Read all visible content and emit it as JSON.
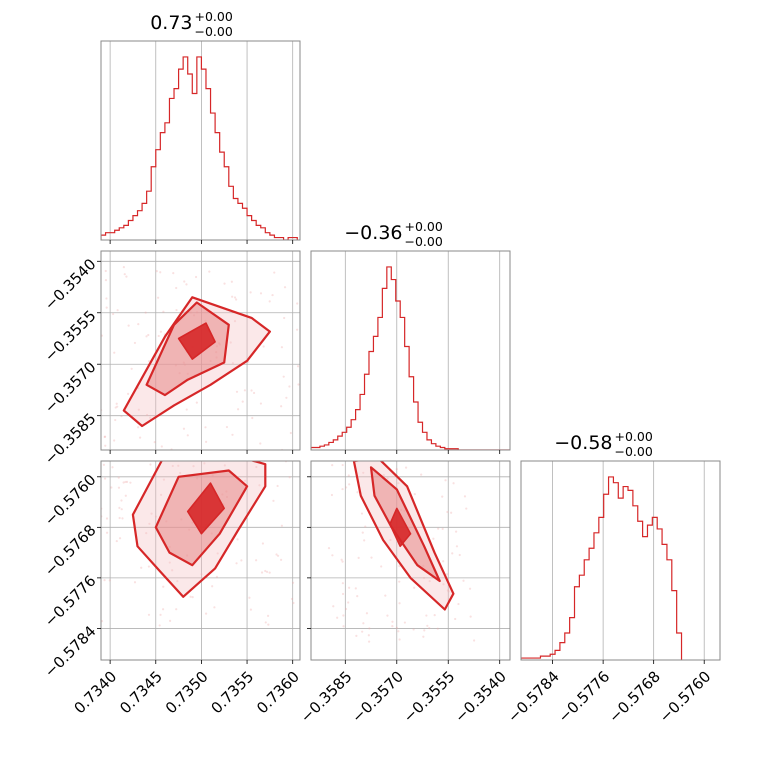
{
  "chart_data": {
    "type": "corner",
    "color": "#d62728",
    "parameters": [
      {
        "title": {
          "median": "0.73",
          "plus": "+0.00",
          "minus": "−0.00"
        },
        "range": [
          0.7339,
          0.73608
        ],
        "ticks": [
          {
            "value": 0.734,
            "label": "0.7340"
          },
          {
            "value": 0.7345,
            "label": "0.7345"
          },
          {
            "value": 0.735,
            "label": "0.7350"
          },
          {
            "value": 0.7355,
            "label": "0.7355"
          },
          {
            "value": 0.736,
            "label": "0.7360"
          }
        ],
        "hist": {
          "start": 0.7339,
          "width": 5e-05,
          "counts": [
            2,
            3,
            3,
            4,
            5,
            6,
            8,
            10,
            12,
            15,
            20,
            30,
            37,
            44,
            48,
            58,
            62,
            70,
            75,
            68,
            60,
            75,
            70,
            62,
            52,
            44,
            36,
            30,
            22,
            17,
            15,
            13,
            10,
            8,
            6,
            5,
            3,
            2,
            1,
            1,
            0,
            1,
            1
          ]
        }
      },
      {
        "title": {
          "median": "−0.36",
          "plus": "+0.00",
          "minus": "−0.00"
        },
        "range": [
          -0.3595,
          -0.3537
        ],
        "ticks": [
          {
            "value": -0.3585,
            "label": "−0.3585"
          },
          {
            "value": -0.357,
            "label": "−0.3570"
          },
          {
            "value": -0.3555,
            "label": "−0.3555"
          },
          {
            "value": -0.354,
            "label": "−0.3540"
          }
        ],
        "hist": {
          "start": -0.3595,
          "width": 0.00013,
          "counts": [
            2,
            2,
            3,
            4,
            6,
            8,
            11,
            14,
            18,
            24,
            32,
            44,
            60,
            78,
            90,
            105,
            128,
            145,
            135,
            118,
            105,
            82,
            58,
            38,
            22,
            14,
            8,
            5,
            3,
            2,
            1,
            1,
            1,
            0,
            0,
            0,
            0,
            0,
            0,
            0,
            0,
            0,
            0,
            0,
            0
          ]
        }
      },
      {
        "title": {
          "median": "−0.58",
          "plus": "+0.00",
          "minus": "−0.00"
        },
        "range": [
          -0.5789,
          -0.57575
        ],
        "ticks": [
          {
            "value": -0.5784,
            "label": "−0.5784"
          },
          {
            "value": -0.5776,
            "label": "−0.5776"
          },
          {
            "value": -0.5768,
            "label": "−0.5768"
          },
          {
            "value": -0.576,
            "label": "−0.5760"
          }
        ],
        "hist": {
          "start": -0.5789,
          "width": 7.7e-05,
          "counts": [
            1,
            1,
            1,
            1,
            2,
            2,
            3,
            5,
            9,
            14,
            22,
            38,
            44,
            52,
            58,
            66,
            74,
            86,
            95,
            92,
            84,
            90,
            88,
            80,
            72,
            64,
            70,
            74,
            68,
            60,
            52,
            36,
            14
          ]
        }
      }
    ],
    "pairs": [
      {
        "row": 1,
        "col": 0,
        "levels": [
          {
            "points": [
              [
                0.73415,
                -0.35835
              ],
              [
                0.7346,
                -0.3562
              ],
              [
                0.7349,
                -0.35505
              ],
              [
                0.73555,
                -0.35565
              ],
              [
                0.73575,
                -0.35605
              ],
              [
                0.7355,
                -0.3569
              ],
              [
                0.7351,
                -0.3576
              ],
              [
                0.7347,
                -0.3582
              ],
              [
                0.73435,
                -0.3588
              ]
            ]
          },
          {
            "points": [
              [
                0.7344,
                -0.3576
              ],
              [
                0.7347,
                -0.35585
              ],
              [
                0.73495,
                -0.3552
              ],
              [
                0.7353,
                -0.35585
              ],
              [
                0.73525,
                -0.35695
              ],
              [
                0.73485,
                -0.35745
              ],
              [
                0.7346,
                -0.3579
              ]
            ]
          },
          {
            "points": [
              [
                0.73475,
                -0.35625
              ],
              [
                0.73505,
                -0.3558
              ],
              [
                0.73515,
                -0.35635
              ],
              [
                0.7349,
                -0.35685
              ]
            ]
          }
        ]
      },
      {
        "row": 2,
        "col": 0,
        "levels": [
          {
            "points": [
              [
                0.73425,
                -0.5766
              ],
              [
                0.7346,
                -0.57565
              ],
              [
                0.73545,
                -0.5757
              ],
              [
                0.7357,
                -0.5758
              ],
              [
                0.7357,
                -0.57615
              ],
              [
                0.7354,
                -0.57685
              ],
              [
                0.73515,
                -0.57745
              ],
              [
                0.7348,
                -0.5779
              ],
              [
                0.73455,
                -0.5775
              ],
              [
                0.7343,
                -0.5771
              ]
            ]
          },
          {
            "points": [
              [
                0.7345,
                -0.5768
              ],
              [
                0.73475,
                -0.576
              ],
              [
                0.7353,
                -0.5759
              ],
              [
                0.7355,
                -0.57615
              ],
              [
                0.7352,
                -0.5769
              ],
              [
                0.7349,
                -0.5774
              ],
              [
                0.73465,
                -0.5772
              ]
            ]
          },
          {
            "points": [
              [
                0.73485,
                -0.57655
              ],
              [
                0.7351,
                -0.5761
              ],
              [
                0.73525,
                -0.5765
              ],
              [
                0.735,
                -0.5769
              ]
            ]
          }
        ]
      },
      {
        "row": 2,
        "col": 1,
        "levels": [
          {
            "points": [
              [
                -0.35825,
                -0.57575
              ],
              [
                -0.35755,
                -0.5757
              ],
              [
                -0.3567,
                -0.57615
              ],
              [
                -0.3559,
                -0.5772
              ],
              [
                -0.35535,
                -0.57785
              ],
              [
                -0.3556,
                -0.5781
              ],
              [
                -0.3566,
                -0.5776
              ],
              [
                -0.3574,
                -0.577
              ],
              [
                -0.35805,
                -0.5763
              ]
            ]
          },
          {
            "points": [
              [
                -0.35775,
                -0.57585
              ],
              [
                -0.357,
                -0.5762
              ],
              [
                -0.3562,
                -0.5771
              ],
              [
                -0.35575,
                -0.57765
              ],
              [
                -0.3564,
                -0.5774
              ],
              [
                -0.35715,
                -0.5768
              ],
              [
                -0.35765,
                -0.5763
              ]
            ]
          },
          {
            "points": [
              [
                -0.357,
                -0.5765
              ],
              [
                -0.3566,
                -0.5769
              ],
              [
                -0.3569,
                -0.5771
              ],
              [
                -0.3572,
                -0.57675
              ]
            ]
          }
        ]
      }
    ]
  }
}
